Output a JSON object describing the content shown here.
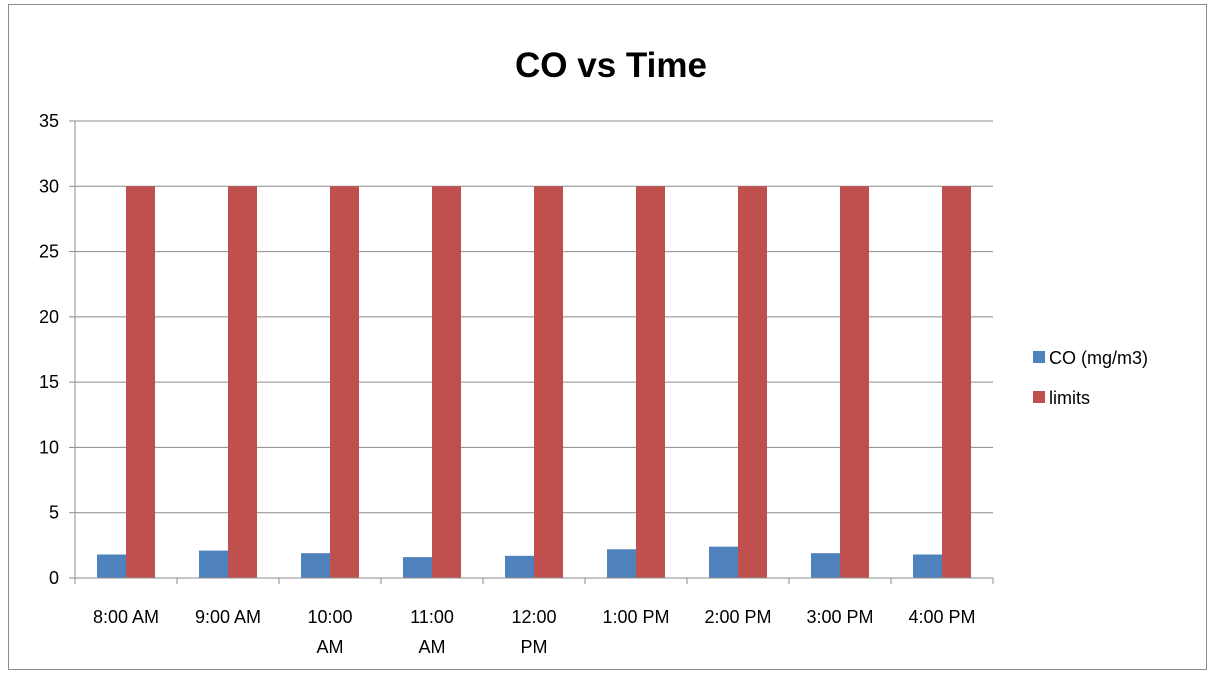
{
  "chart_data": {
    "type": "bar",
    "title": "CO vs Time",
    "xlabel": "",
    "ylabel": "",
    "categories": [
      "8:00 AM",
      "9:00 AM",
      "10:00 AM",
      "11:00 AM",
      "12:00 PM",
      "1:00 PM",
      "2:00 PM",
      "3:00 PM",
      "4:00 PM"
    ],
    "category_lines": [
      [
        "8:00 AM"
      ],
      [
        "9:00 AM"
      ],
      [
        "10:00",
        "AM"
      ],
      [
        "11:00",
        "AM"
      ],
      [
        "12:00",
        "PM"
      ],
      [
        "1:00 PM"
      ],
      [
        "2:00 PM"
      ],
      [
        "3:00 PM"
      ],
      [
        "4:00 PM"
      ]
    ],
    "series": [
      {
        "name": "CO (mg/m3)",
        "color": "#4f81bd",
        "values": [
          1.8,
          2.1,
          1.9,
          1.6,
          1.7,
          2.2,
          2.4,
          1.9,
          1.8
        ]
      },
      {
        "name": "limits",
        "color": "#c0504d",
        "values": [
          30,
          30,
          30,
          30,
          30,
          30,
          30,
          30,
          30
        ]
      }
    ],
    "ylim": [
      0,
      35
    ],
    "yticks": [
      0,
      5,
      10,
      15,
      20,
      25,
      30,
      35
    ],
    "grid": true,
    "legend_position": "right"
  }
}
